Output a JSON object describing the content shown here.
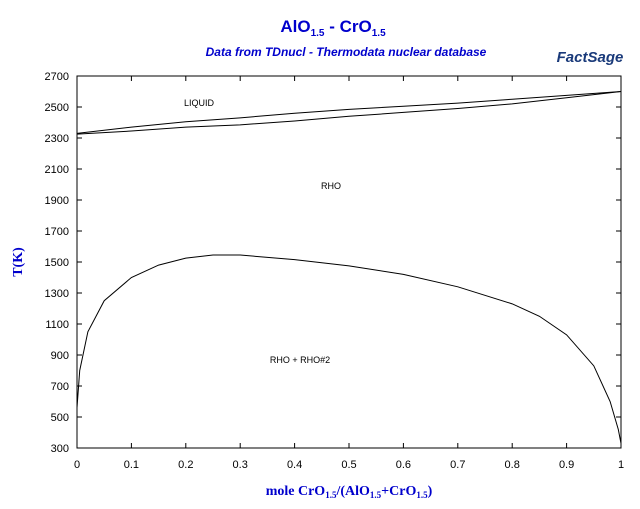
{
  "chart_data": {
    "type": "line",
    "title": [
      "AlO",
      "1.5",
      " - CrO",
      "1.5"
    ],
    "subtitle": "Data from TDnucl - Thermodata nuclear database",
    "logo": "FactSage",
    "ylabel": "T(K)",
    "xlabel": [
      "mole CrO",
      "1.5",
      "/(AlO",
      "1.5",
      "+CrO",
      "1.5",
      ")"
    ],
    "annotations": [
      "LIQUID",
      "RHO",
      "RHO + RHO#2"
    ],
    "xlim": [
      0,
      1
    ],
    "ylim": [
      300,
      2700
    ],
    "xticks": [
      0,
      0.1,
      0.2,
      0.3,
      0.4,
      0.5,
      0.6,
      0.7,
      0.8,
      0.9,
      1
    ],
    "yticks": [
      300,
      500,
      700,
      900,
      1100,
      1300,
      1500,
      1700,
      1900,
      2100,
      2300,
      2500,
      2700
    ],
    "series": [
      {
        "color": "#000000",
        "x": [
          0,
          0.1,
          0.2,
          0.3,
          0.4,
          0.5,
          0.6,
          0.7,
          0.8,
          0.9,
          1
        ],
        "values": [
          2330,
          2370,
          2405,
          2430,
          2460,
          2485,
          2505,
          2525,
          2550,
          2575,
          2600
        ]
      },
      {
        "color": "#000000",
        "x": [
          0,
          0.1,
          0.2,
          0.3,
          0.4,
          0.5,
          0.6,
          0.7,
          0.8,
          0.9,
          1
        ],
        "values": [
          2325,
          2345,
          2370,
          2385,
          2410,
          2440,
          2465,
          2490,
          2520,
          2560,
          2600
        ]
      },
      {
        "color": "#000000",
        "x": [
          0,
          0.005,
          0.02,
          0.05,
          0.1,
          0.15,
          0.2,
          0.25,
          0.3,
          0.4,
          0.5,
          0.6,
          0.7,
          0.8,
          0.85,
          0.9,
          0.95,
          0.98,
          0.995,
          1
        ],
        "values": [
          560,
          800,
          1050,
          1250,
          1400,
          1480,
          1525,
          1545,
          1545,
          1515,
          1475,
          1420,
          1340,
          1230,
          1150,
          1030,
          830,
          600,
          420,
          330
        ]
      }
    ]
  }
}
